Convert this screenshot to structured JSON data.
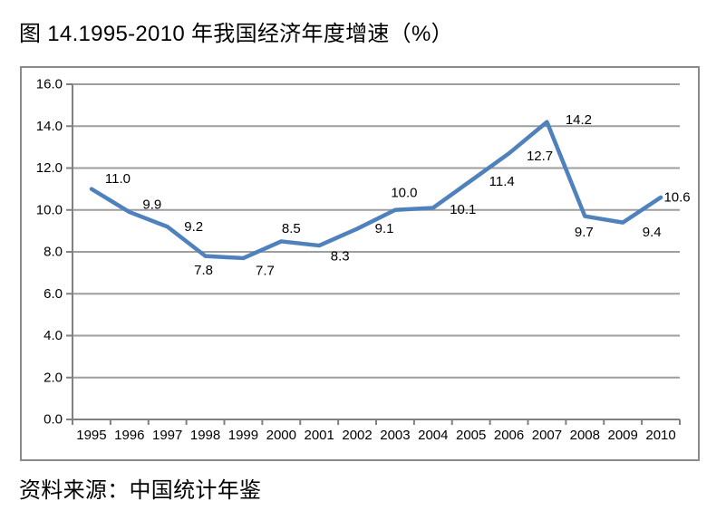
{
  "colors": {
    "line": "#4F81BD",
    "grid": "#9e9e9e",
    "axis": "#808080",
    "frame_border": "#8a8a8a",
    "text": "#000000"
  },
  "chart_data": {
    "type": "line",
    "title": "图 14.1995-2010 年我国经济年度增速（%）",
    "source": "资料来源：中国统计年鉴",
    "categories": [
      "1995",
      "1996",
      "1997",
      "1998",
      "1999",
      "2000",
      "2001",
      "2002",
      "2003",
      "2004",
      "2005",
      "2006",
      "2007",
      "2008",
      "2009",
      "2010"
    ],
    "series": [
      {
        "values": [
          11.0,
          9.9,
          9.2,
          7.8,
          7.7,
          8.5,
          8.3,
          9.1,
          10.0,
          10.1,
          11.4,
          12.7,
          14.2,
          9.7,
          9.4,
          10.6
        ],
        "point_labels": [
          "11.0",
          "9.9",
          "9.2",
          "7.8",
          "7.7",
          "8.5",
          "8.3",
          "9.1",
          "10.0",
          "10.1",
          "11.4",
          "12.7",
          "14.2",
          "9.7",
          "9.4",
          "10.6"
        ]
      }
    ],
    "xlabel": "",
    "ylabel": "",
    "ylim": [
      0,
      16
    ],
    "ytick_step": 2,
    "ytick_labels": [
      "0.0",
      "2.0",
      "4.0",
      "6.0",
      "8.0",
      "10.0",
      "12.0",
      "14.0",
      "16.0"
    ],
    "grid": true,
    "legend": "none",
    "data_labels": true
  }
}
